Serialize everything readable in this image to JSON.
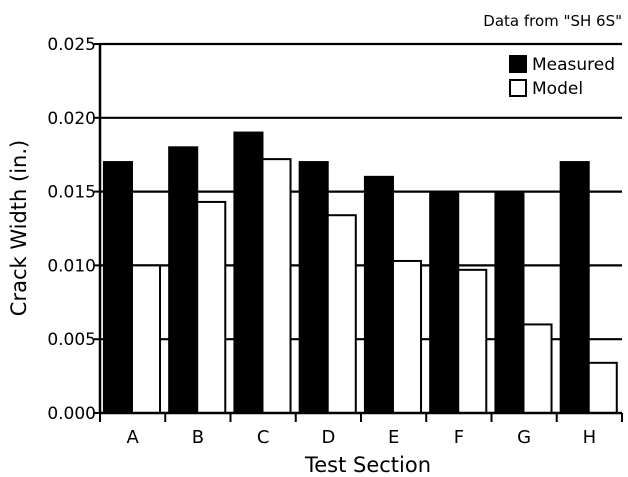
{
  "chart_data": {
    "type": "bar",
    "title": "",
    "annotation": "Data from \"SH 6S\"",
    "xlabel": "Test Section",
    "ylabel": "Crack Width (in.)",
    "categories": [
      "A",
      "B",
      "C",
      "D",
      "E",
      "F",
      "G",
      "H"
    ],
    "series": [
      {
        "name": "Measured",
        "color": "#000000",
        "values": [
          0.017,
          0.018,
          0.019,
          0.017,
          0.016,
          0.015,
          0.015,
          0.017
        ]
      },
      {
        "name": "Model",
        "color": "#ffffff",
        "values": [
          0.01,
          0.0143,
          0.0172,
          0.0134,
          0.0103,
          0.0097,
          0.006,
          0.0034
        ]
      }
    ],
    "ylim": [
      0,
      0.025
    ],
    "yticks": [
      "0.000",
      "0.005",
      "0.010",
      "0.015",
      "0.020",
      "0.025"
    ],
    "ytick_values": [
      0,
      0.005,
      0.01,
      0.015,
      0.02,
      0.025
    ],
    "grid": true,
    "legend_position": "top-right"
  }
}
